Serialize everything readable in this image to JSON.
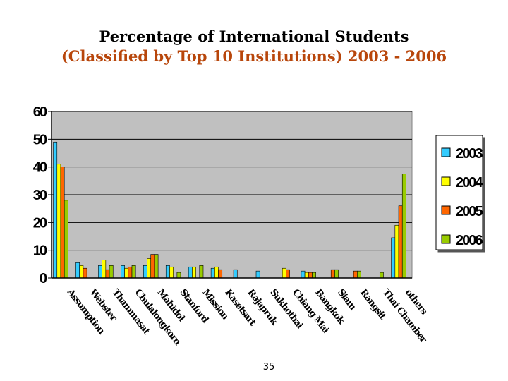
{
  "title": {
    "line1": "Percentage of International Students",
    "line2": "(Classified by Top 10 Institutions) 2003 - 2006"
  },
  "page_number": "35",
  "chart_data": {
    "type": "bar",
    "title": "Percentage of International Students (Classified by Top 10 Institutions) 2003 - 2006",
    "xlabel": "",
    "ylabel": "",
    "ylim": [
      0,
      60
    ],
    "yticks": [
      0,
      10,
      20,
      30,
      40,
      50,
      60
    ],
    "grid": true,
    "legend_position": "right",
    "categories": [
      "Assumption",
      "Webster",
      "Thammasat",
      "Chulalongkorn",
      "Mahidol",
      "Stanford",
      "Mission",
      "Kasetsart",
      "Rajapruk",
      "Sukhothai",
      "Chiang Mai",
      "Bangkok",
      "Siam",
      "Rangsit",
      "Thai Chamber",
      "others"
    ],
    "series": [
      {
        "name": "2003",
        "color": "#33ccff",
        "values": [
          49,
          5.5,
          4.5,
          4.5,
          4.5,
          4.5,
          4,
          3.5,
          3,
          2.5,
          0,
          2.5,
          0,
          0,
          0,
          14.5
        ]
      },
      {
        "name": "2004",
        "color": "#ffff00",
        "values": [
          41,
          4.5,
          6.5,
          3.5,
          7,
          4,
          4,
          4,
          0,
          0,
          3.5,
          2,
          0,
          0,
          0,
          19
        ]
      },
      {
        "name": "2005",
        "color": "#ff6600",
        "values": [
          40,
          3.5,
          3,
          4,
          8.5,
          0,
          0,
          3,
          0,
          0,
          3,
          2,
          3,
          2.5,
          0,
          26
        ]
      },
      {
        "name": "2006",
        "color": "#99cc00",
        "values": [
          28,
          0,
          4.5,
          4.5,
          8.5,
          2,
          4.5,
          0,
          0,
          0,
          0,
          2,
          3,
          2.5,
          2,
          37.5
        ]
      }
    ]
  }
}
